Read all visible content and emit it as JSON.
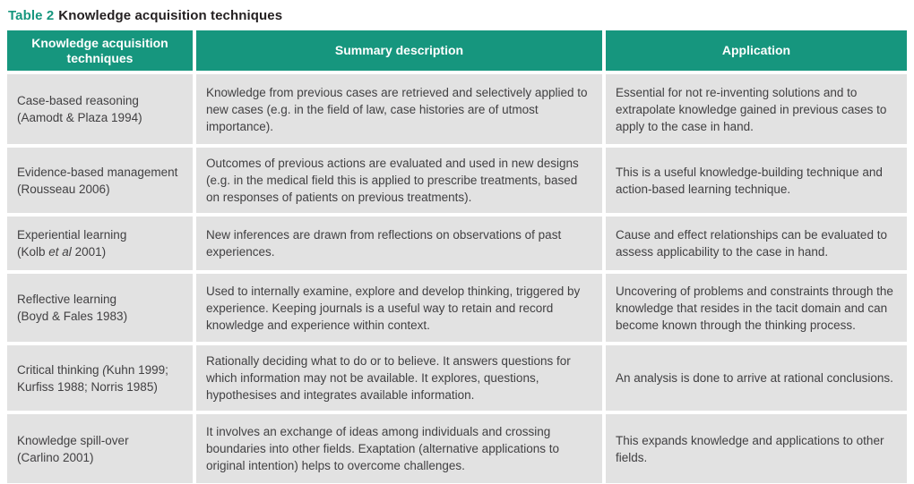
{
  "title": {
    "label": "Table 2",
    "text": "Knowledge acquisition techniques"
  },
  "colors": {
    "accent_teal": "#16967E",
    "cell_background": "#E2E2E2",
    "header_text": "#FFFFFF",
    "body_text": "#414042"
  },
  "table": {
    "headers": [
      "Knowledge acquisition techniques",
      "Summary description",
      "Application"
    ],
    "rows": [
      {
        "technique_lines": [
          "Case-based reasoning",
          "(Aamodt & Plaza 1994)"
        ],
        "summary": "Knowledge from previous cases are retrieved and selectively applied to new cases (e.g. in the field of law, case histories are of utmost importance).",
        "application": "Essential for not re-inventing solutions and to extrapolate knowledge gained in previous cases to apply to the case in hand."
      },
      {
        "technique_lines": [
          "Evidence-based management",
          "(Rousseau 2006)"
        ],
        "summary": "Outcomes of previous actions are evaluated and used in new designs (e.g. in the medical field this is applied to prescribe treatments, based on responses of patients on previous treatments).",
        "application": "This is a useful knowledge-building technique and action-based learning technique."
      },
      {
        "technique_lines": [
          "Experiential learning",
          "(Kolb <i>et al</i> 2001)"
        ],
        "summary": "New inferences are drawn from reflections on observations of past experiences.",
        "application": "Cause and effect relationships can be evaluated to assess applicability to the case in hand."
      },
      {
        "technique_lines": [
          "Reflective learning",
          "(Boyd & Fales 1983)"
        ],
        "summary": "Used to internally examine, explore and develop thinking, triggered by experience. Keeping journals is a useful way to retain and record knowledge and experience within context.",
        "application": "Uncovering of problems and constraints through the knowledge that resides in the tacit domain and can become known through the thinking process."
      },
      {
        "technique_lines": [
          "Critical thinking <i>(</i>Kuhn 1999;",
          "Kurfiss 1988; Norris 1985)"
        ],
        "summary": "Rationally deciding what to do or to believe. It answers questions for which information may not be available. It explores, questions, hypothesises and integrates available information.",
        "application": "An analysis is done to arrive at rational conclusions."
      },
      {
        "technique_lines": [
          "Knowledge spill-over",
          "(Carlino 2001)"
        ],
        "summary": "It involves an exchange of ideas among individuals and crossing boundaries into other fields. Exaptation (alternative applications to original intention) helps to overcome challenges.",
        "application": "This expands knowledge and applications to other fields."
      }
    ]
  }
}
